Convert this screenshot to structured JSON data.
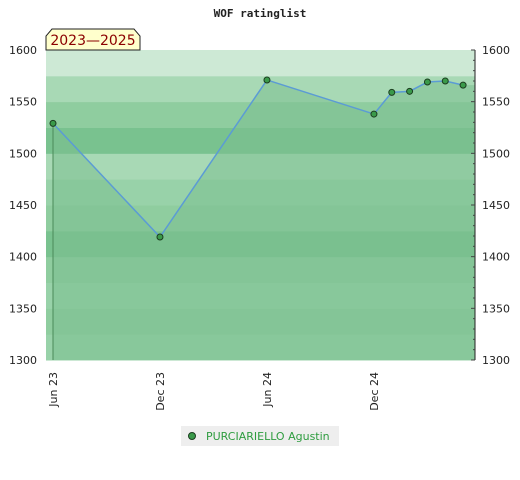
{
  "chart_data": {
    "type": "area",
    "title": "WOF ratinglist",
    "badge": "2023—2025",
    "ylim": [
      1300,
      1600
    ],
    "yticks": [
      1300,
      1350,
      1400,
      1450,
      1500,
      1550,
      1600
    ],
    "xticks": [
      {
        "label": "Jun 23",
        "month": 0
      },
      {
        "label": "Dec 23",
        "month": 6
      },
      {
        "label": "Jun 24",
        "month": 12
      },
      {
        "label": "Dec 24",
        "month": 18
      }
    ],
    "series": [
      {
        "name": "PURCIARIELLO Agustin",
        "x": [
          "2023-06",
          "2023-12",
          "2024-06",
          "2024-12",
          "2025-01",
          "2025-02",
          "2025-03",
          "2025-04",
          "2025-05"
        ],
        "values": [
          1529,
          1419,
          1571,
          1538,
          1559,
          1560,
          1569,
          1570,
          1566
        ]
      }
    ],
    "legend": "bottom-center",
    "colors": {
      "line": "#5b9bd5",
      "fill": "#7cc08f",
      "marker": "#3a9a4a",
      "badge_bg": "#ffffcc"
    }
  }
}
